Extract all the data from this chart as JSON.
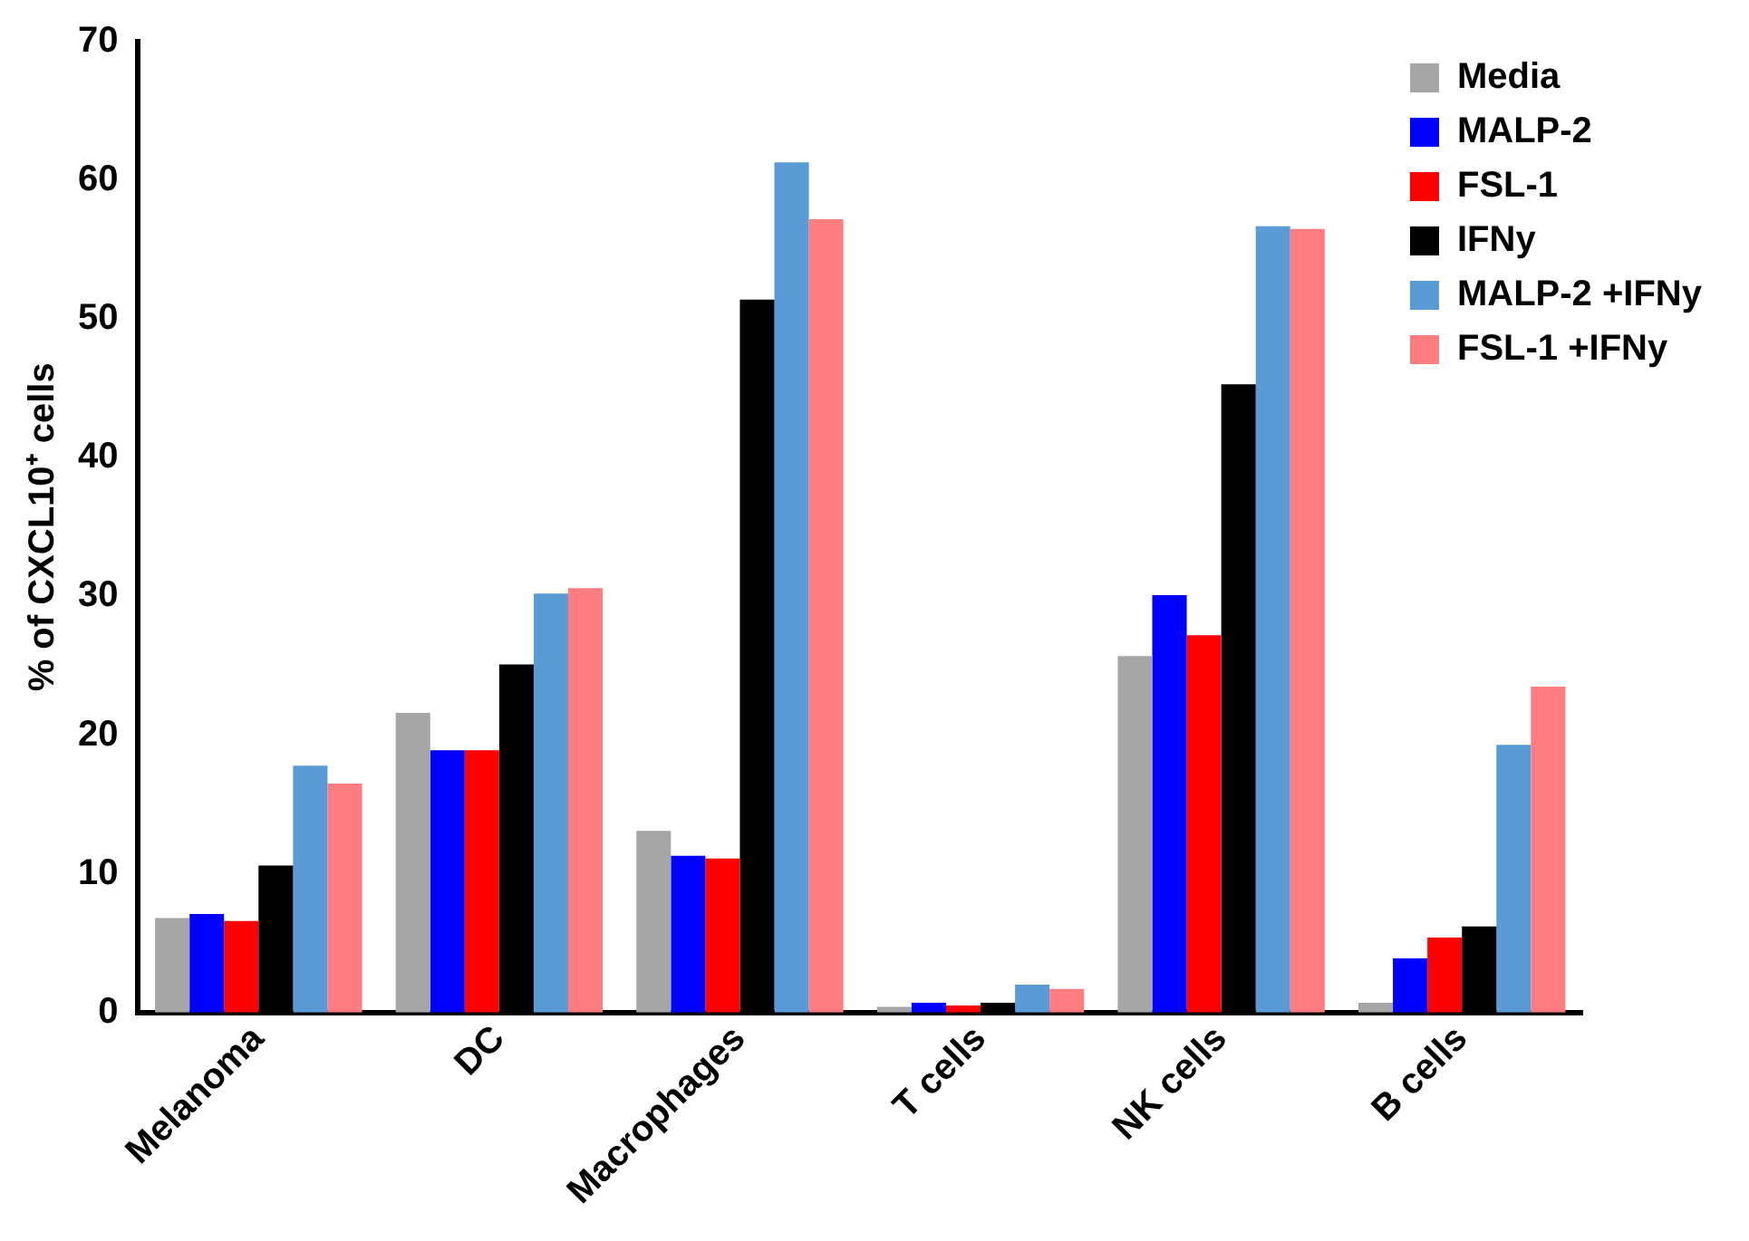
{
  "chart_data": {
    "type": "bar",
    "ylabel": "% of CXCL10⁺ cells",
    "categories": [
      "Melanoma",
      "DC",
      "Macrophages",
      "T cells",
      "NK cells",
      "B cells"
    ],
    "series": [
      {
        "name": "Media",
        "color": "#a6a6a6",
        "values": [
          6.8,
          21.6,
          13.1,
          0.4,
          25.7,
          0.7
        ]
      },
      {
        "name": "MALP-2",
        "color": "#0000ff",
        "values": [
          7.1,
          18.9,
          11.3,
          0.7,
          30.1,
          3.9
        ]
      },
      {
        "name": "FSL-1",
        "color": "#ff0000",
        "values": [
          6.6,
          18.9,
          11.1,
          0.5,
          27.2,
          5.4
        ]
      },
      {
        "name": "IFNy",
        "color": "#000000",
        "values": [
          10.6,
          25.1,
          51.4,
          0.7,
          45.3,
          6.2
        ]
      },
      {
        "name": "MALP-2 +IFNy",
        "color": "#5b9bd5",
        "values": [
          17.8,
          30.2,
          61.3,
          2.0,
          56.7,
          19.3
        ]
      },
      {
        "name": "FSL-1 +IFNy",
        "color": "#ff7c80",
        "values": [
          16.5,
          30.6,
          57.2,
          1.7,
          56.5,
          23.5
        ]
      }
    ],
    "ylim": [
      0,
      70
    ],
    "yticks": [
      0,
      10,
      20,
      30,
      40,
      50,
      60,
      70
    ],
    "grid": false,
    "legend": "top right"
  }
}
